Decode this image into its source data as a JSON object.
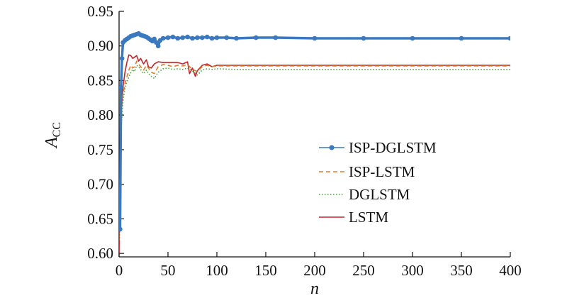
{
  "chart_data": {
    "type": "line",
    "xlabel": "n",
    "ylabel": "A",
    "ylabel_subscript": "CC",
    "xlim": [
      0,
      400
    ],
    "ylim": [
      0.595,
      0.95
    ],
    "xticks": [
      0,
      50,
      100,
      150,
      200,
      250,
      300,
      350,
      400
    ],
    "yticks": [
      0.6,
      0.65,
      0.7,
      0.75,
      0.8,
      0.85,
      0.9,
      0.95
    ],
    "xtick_labels": [
      "0",
      "50",
      "100",
      "150",
      "200",
      "250",
      "300",
      "350",
      "400"
    ],
    "ytick_labels": [
      "0.60",
      "0.65",
      "0.70",
      "0.75",
      "0.80",
      "0.85",
      "0.90",
      "0.95"
    ],
    "grid": false,
    "legend_position": "center-right",
    "series": [
      {
        "name": "ISP-DGLSTM",
        "color": "#3a78c0",
        "style": "solid-marker",
        "x": [
          1,
          2,
          3,
          4,
          6,
          8,
          10,
          12,
          14,
          16,
          18,
          20,
          22,
          24,
          26,
          28,
          30,
          32,
          34,
          36,
          38,
          40,
          42,
          45,
          50,
          55,
          60,
          65,
          70,
          75,
          80,
          85,
          90,
          95,
          100,
          110,
          120,
          140,
          160,
          200,
          250,
          300,
          350,
          400
        ],
        "y": [
          0.635,
          0.84,
          0.882,
          0.905,
          0.908,
          0.91,
          0.912,
          0.914,
          0.915,
          0.916,
          0.917,
          0.918,
          0.916,
          0.915,
          0.914,
          0.913,
          0.911,
          0.909,
          0.907,
          0.91,
          0.905,
          0.9,
          0.908,
          0.911,
          0.912,
          0.913,
          0.911,
          0.912,
          0.913,
          0.911,
          0.912,
          0.912,
          0.913,
          0.911,
          0.912,
          0.912,
          0.911,
          0.912,
          0.912,
          0.911,
          0.911,
          0.911,
          0.911,
          0.911
        ]
      },
      {
        "name": "ISP-LSTM",
        "color": "#e07b2a",
        "style": "dashed",
        "x": [
          0,
          2,
          4,
          6,
          8,
          10,
          12,
          14,
          16,
          18,
          20,
          22,
          25,
          28,
          30,
          33,
          36,
          40,
          45,
          50,
          55,
          60,
          65,
          70,
          75,
          80,
          85,
          90,
          95,
          100,
          120,
          150,
          200,
          250,
          300,
          350,
          400
        ],
        "y": [
          0.64,
          0.8,
          0.83,
          0.845,
          0.855,
          0.865,
          0.872,
          0.868,
          0.87,
          0.878,
          0.874,
          0.87,
          0.865,
          0.872,
          0.868,
          0.862,
          0.86,
          0.87,
          0.873,
          0.872,
          0.87,
          0.872,
          0.871,
          0.873,
          0.866,
          0.863,
          0.87,
          0.872,
          0.87,
          0.871,
          0.871,
          0.871,
          0.871,
          0.871,
          0.871,
          0.871,
          0.871
        ]
      },
      {
        "name": "DGLSTM",
        "color": "#4a9c3a",
        "style": "dotted",
        "x": [
          0,
          2,
          4,
          6,
          8,
          10,
          12,
          14,
          16,
          18,
          20,
          22,
          25,
          28,
          30,
          33,
          36,
          40,
          45,
          50,
          55,
          60,
          65,
          70,
          75,
          80,
          85,
          90,
          95,
          100,
          120,
          150,
          200,
          250,
          300,
          350,
          400
        ],
        "y": [
          0.62,
          0.78,
          0.82,
          0.838,
          0.848,
          0.855,
          0.862,
          0.866,
          0.863,
          0.872,
          0.87,
          0.866,
          0.86,
          0.865,
          0.86,
          0.856,
          0.853,
          0.862,
          0.867,
          0.868,
          0.866,
          0.867,
          0.866,
          0.868,
          0.864,
          0.858,
          0.865,
          0.867,
          0.866,
          0.867,
          0.866,
          0.866,
          0.866,
          0.866,
          0.866,
          0.866,
          0.866
        ]
      },
      {
        "name": "LSTM",
        "color": "#c0262d",
        "style": "solid",
        "x": [
          0,
          2,
          4,
          6,
          8,
          10,
          12,
          14,
          16,
          18,
          20,
          22,
          25,
          28,
          30,
          33,
          36,
          40,
          45,
          50,
          55,
          60,
          65,
          70,
          72,
          75,
          78,
          80,
          85,
          90,
          95,
          100,
          120,
          150,
          200,
          250,
          300,
          350,
          400
        ],
        "y": [
          0.6,
          0.8,
          0.84,
          0.862,
          0.876,
          0.887,
          0.886,
          0.882,
          0.884,
          0.886,
          0.878,
          0.882,
          0.874,
          0.88,
          0.87,
          0.868,
          0.874,
          0.877,
          0.876,
          0.876,
          0.876,
          0.876,
          0.874,
          0.877,
          0.86,
          0.868,
          0.856,
          0.864,
          0.872,
          0.874,
          0.87,
          0.872,
          0.872,
          0.872,
          0.872,
          0.872,
          0.872,
          0.872,
          0.872
        ]
      }
    ]
  }
}
